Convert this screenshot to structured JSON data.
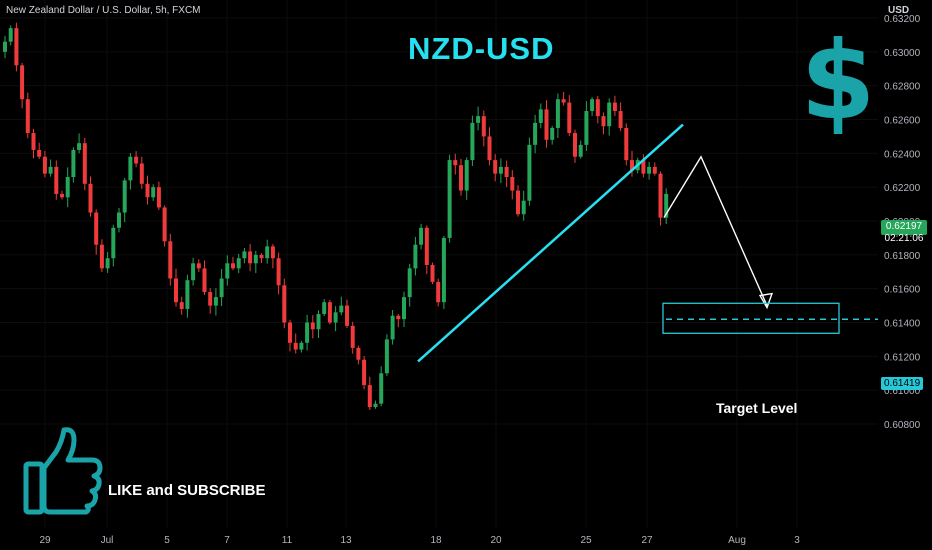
{
  "header": {
    "symbol_description": "New Zealand Dollar / U.S. Dollar, 5h, FXCM",
    "currency": "USD"
  },
  "annotations": {
    "title": "NZD-USD",
    "subscribe_text": "LIKE and SUBSCRIBE",
    "target_text": "Target Level"
  },
  "price_scale": {
    "current_price": "0.62197",
    "countdown": "02:21:06",
    "target_price": "0.61419",
    "current_color": "#26a65b",
    "target_color": "#27c9d9"
  },
  "colors": {
    "background": "#000000",
    "bullish": "#26a65b",
    "bearish": "#ef3b3b",
    "trendline": "#27e0f2",
    "projection": "#ffffff",
    "title": "#26e0f0",
    "icons": "#1aa3a8"
  },
  "icons": [
    "dollar-icon",
    "thumbs-up-icon"
  ],
  "chart_data": {
    "type": "candlestick",
    "ylim": [
      0.6068,
      0.6322
    ],
    "y_ticks": [
      0.608,
      0.61,
      0.612,
      0.614,
      0.616,
      0.618,
      0.62,
      0.622,
      0.624,
      0.626,
      0.628,
      0.63,
      0.632
    ],
    "y_tick_labels": [
      "0.60800",
      "0.61000",
      "0.61200",
      "0.61400",
      "0.61600",
      "0.61800",
      "0.62000",
      "0.62200",
      "0.62400",
      "0.62600",
      "0.62800",
      "0.63000",
      "0.63200"
    ],
    "x_tick_labels": [
      "29",
      "Jul",
      "5",
      "7",
      "11",
      "13",
      "18",
      "20",
      "25",
      "27",
      "Aug",
      "3"
    ],
    "close_path": [
      0.6306,
      0.6314,
      0.6292,
      0.6272,
      0.6252,
      0.6242,
      0.6238,
      0.6228,
      0.6232,
      0.6216,
      0.6214,
      0.6226,
      0.6242,
      0.6246,
      0.6222,
      0.6205,
      0.6186,
      0.6172,
      0.6178,
      0.6196,
      0.6205,
      0.6224,
      0.6238,
      0.6234,
      0.6222,
      0.6214,
      0.622,
      0.6208,
      0.6188,
      0.6166,
      0.6152,
      0.6148,
      0.6165,
      0.6175,
      0.6172,
      0.6158,
      0.615,
      0.6155,
      0.6166,
      0.6175,
      0.6172,
      0.6178,
      0.6182,
      0.6175,
      0.618,
      0.6178,
      0.6185,
      0.6178,
      0.6162,
      0.614,
      0.6128,
      0.6124,
      0.6128,
      0.614,
      0.6136,
      0.6145,
      0.6152,
      0.614,
      0.6146,
      0.615,
      0.6138,
      0.6125,
      0.6118,
      0.6103,
      0.609,
      0.6092,
      0.611,
      0.613,
      0.6144,
      0.6142,
      0.6155,
      0.6172,
      0.6186,
      0.6196,
      0.6174,
      0.6164,
      0.6152,
      0.619,
      0.6236,
      0.6233,
      0.6218,
      0.6236,
      0.6258,
      0.6262,
      0.625,
      0.6236,
      0.6228,
      0.6232,
      0.6226,
      0.6218,
      0.6204,
      0.6212,
      0.6245,
      0.6258,
      0.6266,
      0.6248,
      0.6255,
      0.6272,
      0.627,
      0.6252,
      0.6238,
      0.6245,
      0.6265,
      0.6272,
      0.6262,
      0.6256,
      0.627,
      0.6265,
      0.6255,
      0.6236,
      0.623,
      0.6236,
      0.6228,
      0.6232,
      0.6228,
      0.6202,
      0.6216
    ],
    "projection": [
      {
        "x": "27",
        "y": 0.6202
      },
      {
        "x": "Aug",
        "y": 0.6238
      },
      {
        "x": "3",
        "y": 0.615
      }
    ],
    "target_level": 0.61419,
    "current_price": 0.62197
  }
}
